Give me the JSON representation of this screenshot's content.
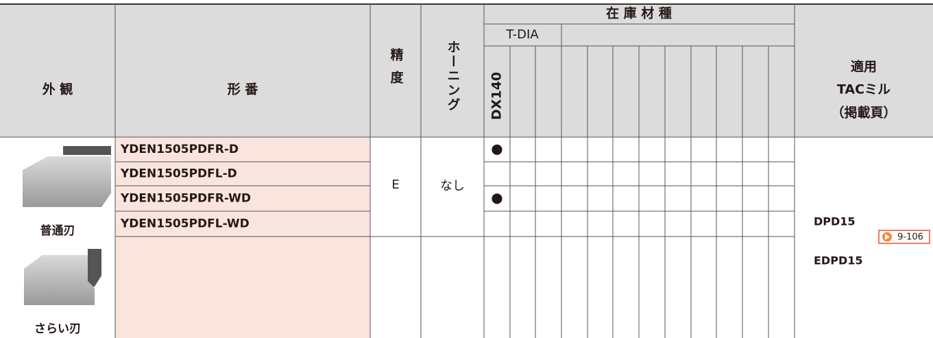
{
  "header": {
    "appearance": "外 観",
    "model": "形 番",
    "precision": "精度",
    "honing": "ホーニング",
    "stock": "在 庫 材 種",
    "grade_group": "T-DIA",
    "grade": "DX140",
    "application": [
      "適用",
      "TACミル",
      "（掲載頁）"
    ]
  },
  "groups": [
    {
      "label": "普通刃",
      "precision": "E",
      "honing": "なし",
      "rows": [
        {
          "part": "YDEN1505PDFR-D",
          "dx140": "●"
        },
        {
          "part": "YDEN1505PDFL-D"
        },
        {
          "part": "YDEN1505PDFR-WD",
          "dx140": "●"
        },
        {
          "part": "YDEN1505PDFL-WD"
        }
      ]
    },
    {
      "label": "さらい刃"
    }
  ],
  "application": {
    "mills": [
      "DPD15",
      "EDPD15"
    ],
    "page": "9-106"
  }
}
